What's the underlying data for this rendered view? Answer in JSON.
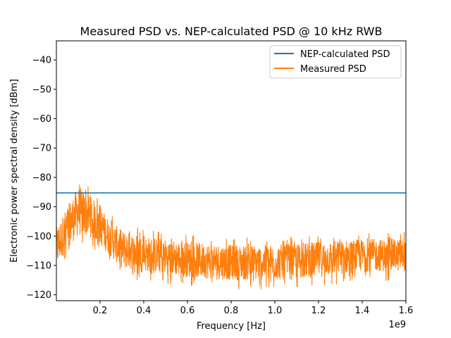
{
  "chart_data": {
    "type": "line",
    "title": "Measured PSD vs. NEP-calculated PSD @ 10 kHz RWB",
    "xlabel": "Frequency [Hz]",
    "ylabel": "Electronic power spectral density [dBm]",
    "x_offset_text": "1e9",
    "xlim": [
      0,
      1.6
    ],
    "ylim": [
      -122,
      -33.5
    ],
    "x_ticks": [
      0.2,
      0.4,
      0.6,
      0.8,
      1.0,
      1.2,
      1.4,
      1.6
    ],
    "x_tick_labels": [
      "0.2",
      "0.4",
      "0.6",
      "0.8",
      "1.0",
      "1.2",
      "1.4",
      "1.6"
    ],
    "y_ticks": [
      -120,
      -110,
      -100,
      -90,
      -80,
      -70,
      -60,
      -50,
      -40
    ],
    "y_tick_labels": [
      "−120",
      "−110",
      "−100",
      "−90",
      "−80",
      "−70",
      "−60",
      "−50",
      "−40"
    ],
    "grid": false,
    "legend_position": "top-right",
    "series": [
      {
        "name": "NEP-calculated PSD",
        "color": "#1f77b4",
        "x": [
          0,
          1.6
        ],
        "y": [
          -85.3,
          -85.3
        ]
      },
      {
        "name": "Measured PSD",
        "color": "#ff7f0e",
        "style": "noisy",
        "x": [
          0.0,
          0.05,
          0.1,
          0.15,
          0.2,
          0.25,
          0.3,
          0.4,
          0.5,
          0.6,
          0.8,
          1.0,
          1.2,
          1.4,
          1.6
        ],
        "y_upper": [
          -97,
          -90,
          -83,
          -86,
          -90,
          -95,
          -98,
          -100,
          -101,
          -102,
          -103,
          -103,
          -102,
          -101,
          -101
        ],
        "y_lower": [
          -111,
          -104,
          -100,
          -100,
          -103,
          -107,
          -111,
          -112,
          -113,
          -114,
          -115,
          -115,
          -114,
          -112,
          -112
        ],
        "y_max": -82.5,
        "y_min": -118
      }
    ]
  }
}
